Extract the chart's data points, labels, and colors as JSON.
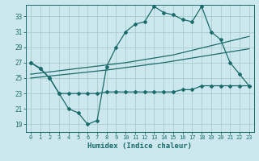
{
  "title": "",
  "xlabel": "Humidex (Indice chaleur)",
  "bg_color": "#cce8ee",
  "grid_color": "#aacccc",
  "line_color": "#1a6b6b",
  "xlim": [
    -0.5,
    23.5
  ],
  "ylim": [
    18.0,
    34.5
  ],
  "yticks": [
    19,
    21,
    23,
    25,
    27,
    29,
    31,
    33
  ],
  "xticks": [
    0,
    1,
    2,
    3,
    4,
    5,
    6,
    7,
    8,
    9,
    10,
    11,
    12,
    13,
    14,
    15,
    16,
    17,
    18,
    19,
    20,
    21,
    22,
    23
  ],
  "x": [
    0,
    1,
    2,
    3,
    4,
    5,
    6,
    7,
    8,
    9,
    10,
    11,
    12,
    13,
    14,
    15,
    16,
    17,
    18,
    19,
    20,
    21,
    22,
    23
  ],
  "line1": [
    27.0,
    26.2,
    25.0,
    23.0,
    21.0,
    20.5,
    19.0,
    19.5,
    26.5,
    29.0,
    31.0,
    32.0,
    32.3,
    34.3,
    33.5,
    33.2,
    32.6,
    32.3,
    34.3,
    31.0,
    30.0,
    27.0,
    25.5,
    24.0
  ],
  "line2": [
    27.0,
    26.3,
    25.0,
    23.0,
    23.0,
    23.0,
    23.0,
    23.0,
    23.2,
    23.2,
    23.2,
    23.2,
    23.2,
    23.2,
    23.2,
    23.2,
    23.5,
    23.5,
    24.0,
    24.0,
    24.0,
    24.0,
    24.0,
    24.0
  ],
  "trend1": [
    25.5,
    25.65,
    25.8,
    25.95,
    26.1,
    26.25,
    26.4,
    26.55,
    26.7,
    26.85,
    27.0,
    27.2,
    27.4,
    27.6,
    27.8,
    28.0,
    28.3,
    28.6,
    28.9,
    29.2,
    29.5,
    29.8,
    30.1,
    30.4
  ],
  "trend2": [
    25.0,
    25.13,
    25.26,
    25.39,
    25.52,
    25.65,
    25.78,
    25.91,
    26.04,
    26.2,
    26.36,
    26.52,
    26.68,
    26.84,
    27.0,
    27.2,
    27.4,
    27.6,
    27.8,
    28.0,
    28.2,
    28.4,
    28.6,
    28.8
  ]
}
